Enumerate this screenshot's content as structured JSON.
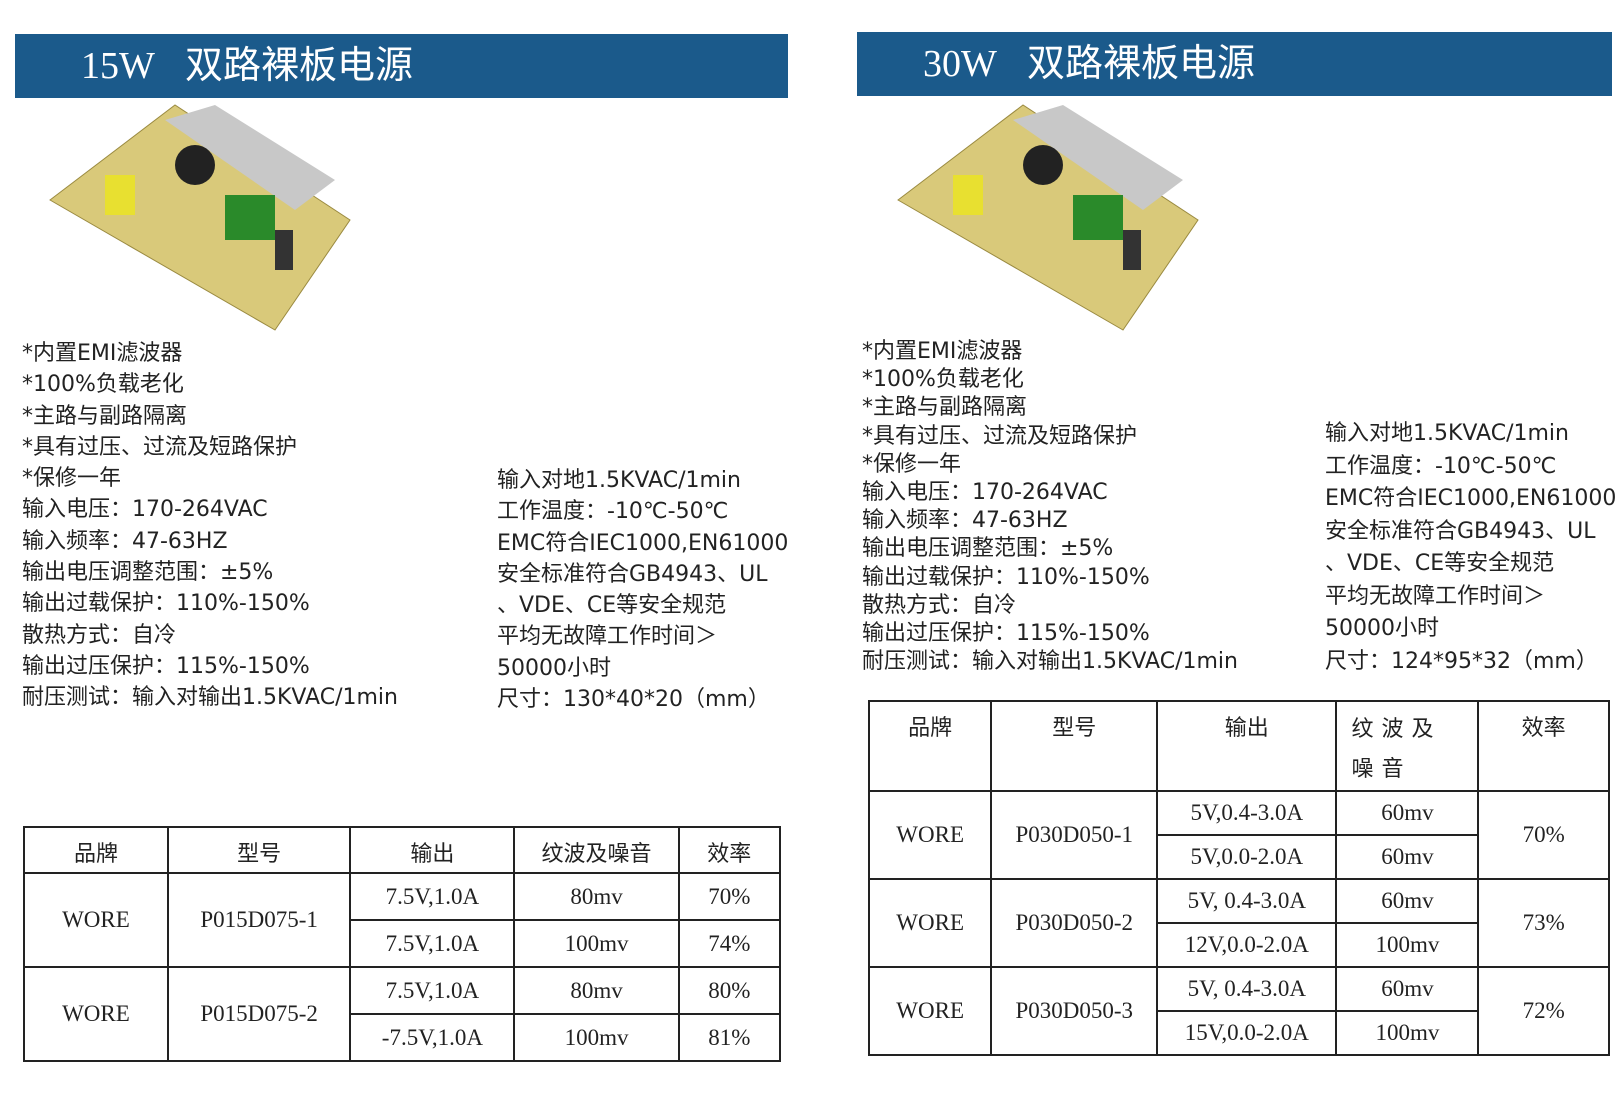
{
  "panels": [
    {
      "header": {
        "power": "15W",
        "name": "双路裸板电源"
      },
      "features": [
        "*内置EMI滤波器",
        "*100%负载老化",
        "*主路与副路隔离",
        "*具有过压、过流及短路保护",
        "*保修一年",
        "输入电压：170-264VAC",
        "输入频率：47-63HZ",
        "输出电压调整范围：±5%",
        "输出过载保护：110%-150%",
        "散热方式：自冷",
        "输出过压保护：115%-150%",
        "耐压测试：输入对输出1.5KVAC/1min"
      ],
      "specs": [
        "输入对地1.5KVAC/1min",
        "工作温度：-10℃-50℃",
        "EMC符合IEC1000,EN61000",
        "安全标准符合GB4943、UL",
        "、VDE、CE等安全规范",
        "平均无故障工作时间＞",
        "50000小时",
        "尺寸：130*40*20（mm）"
      ],
      "table": {
        "headers": [
          "品牌",
          "型号",
          "输出",
          "纹波及噪音",
          "效率"
        ],
        "groups": [
          {
            "brand": "WORE",
            "model": "P015D075-1",
            "rows": [
              [
                "7.5V,1.0A",
                "80mv",
                "70%"
              ],
              [
                "7.5V,1.0A",
                "100mv",
                "74%"
              ]
            ]
          },
          {
            "brand": "WORE",
            "model": "P015D075-2",
            "rows": [
              [
                "7.5V,1.0A",
                "80mv",
                "80%"
              ],
              [
                "-7.5V,1.0A",
                "100mv",
                "81%"
              ]
            ]
          }
        ]
      }
    },
    {
      "header": {
        "power": "30W",
        "name": "双路裸板电源"
      },
      "features": [
        "*内置EMI滤波器",
        "*100%负载老化",
        "*主路与副路隔离",
        "*具有过压、过流及短路保护",
        "*保修一年",
        "输入电压：170-264VAC",
        "输入频率：47-63HZ",
        "输出电压调整范围：±5%",
        "输出过载保护：110%-150%",
        "散热方式：自冷",
        "输出过压保护：115%-150%",
        "耐压测试：输入对输出1.5KVAC/1min"
      ],
      "specs": [
        "输入对地1.5KVAC/1min",
        "工作温度：-10℃-50℃",
        "EMC符合IEC1000,EN61000",
        "安全标准符合GB4943、UL",
        "、VDE、CE等安全规范",
        "平均无故障工作时间＞",
        "50000小时",
        "尺寸：124*95*32（mm）"
      ],
      "table": {
        "headers": [
          "品牌",
          "型号",
          "输出",
          "纹波及噪音",
          "效率"
        ],
        "groups": [
          {
            "brand": "WORE",
            "model": "P030D050-1",
            "rows": [
              [
                "5V,0.4-3.0A",
                "60mv"
              ],
              [
                "5V,0.0-2.0A",
                "60mv"
              ]
            ],
            "efficiency": "70%"
          },
          {
            "brand": "WORE",
            "model": "P030D050-2",
            "rows": [
              [
                "5V, 0.4-3.0A",
                "60mv"
              ],
              [
                "12V,0.0-2.0A",
                "100mv"
              ]
            ],
            "efficiency": "73%"
          },
          {
            "brand": "WORE",
            "model": "P030D050-3",
            "rows": [
              [
                "5V, 0.4-3.0A",
                "60mv"
              ],
              [
                "15V,0.0-2.0A",
                "100mv"
              ]
            ],
            "efficiency": "72%"
          }
        ]
      }
    }
  ]
}
